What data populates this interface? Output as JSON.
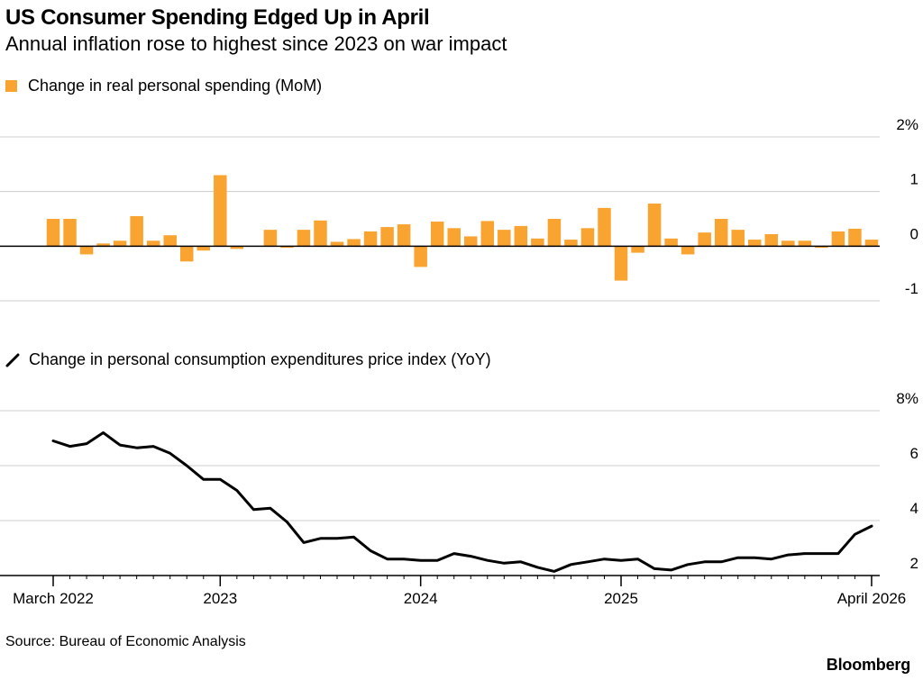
{
  "header": {
    "title": "US Consumer Spending Edged Up in April",
    "subtitle": "Annual inflation rose to highest since 2023 on war impact"
  },
  "legend": {
    "spending": "Change in real personal spending (MoM)",
    "pce": "Change in personal consumption expenditures price index (YoY)"
  },
  "footer": {
    "source": "Source: Bureau of Economic Analysis",
    "brand": "Bloomberg"
  },
  "colors": {
    "bar": "#f9a431",
    "line": "#000000",
    "grid": "#cccccc",
    "zero": "#000000"
  },
  "chart_data": [
    {
      "type": "bar",
      "name": "Change in real personal spending (MoM)",
      "x_start": "2022-03",
      "x_end": "2026-04",
      "ylim": [
        -1,
        2
      ],
      "yticks": [
        -1,
        0,
        1,
        2
      ],
      "ytick_labels": [
        "-1",
        "0",
        "1",
        "2%"
      ],
      "grid": true,
      "values": [
        0.5,
        0.5,
        -0.15,
        0.05,
        0.1,
        0.55,
        0.1,
        0.2,
        -0.28,
        -0.08,
        1.3,
        -0.05,
        0.0,
        0.3,
        -0.03,
        0.3,
        0.47,
        0.08,
        0.13,
        0.27,
        0.35,
        0.4,
        -0.38,
        0.45,
        0.33,
        0.18,
        0.46,
        0.3,
        0.37,
        0.14,
        0.5,
        0.12,
        0.33,
        0.7,
        -0.63,
        -0.12,
        0.78,
        0.14,
        -0.15,
        0.25,
        0.5,
        0.3,
        0.12,
        0.22,
        0.1,
        0.1,
        -0.03,
        0.27,
        0.32,
        0.12
      ]
    },
    {
      "type": "line",
      "name": "Change in personal consumption expenditures price index (YoY)",
      "x_start": "2022-03",
      "x_end": "2026-04",
      "ylim": [
        2,
        8
      ],
      "yticks": [
        2,
        4,
        6,
        8
      ],
      "ytick_labels": [
        "2",
        "4",
        "6",
        "8%"
      ],
      "grid": true,
      "values": [
        6.9,
        6.7,
        6.8,
        7.2,
        6.75,
        6.65,
        6.7,
        6.45,
        6.0,
        5.5,
        5.5,
        5.1,
        4.4,
        4.45,
        3.95,
        3.2,
        3.35,
        3.35,
        3.4,
        2.9,
        2.6,
        2.6,
        2.55,
        2.55,
        2.8,
        2.7,
        2.55,
        2.45,
        2.5,
        2.3,
        2.15,
        2.4,
        2.5,
        2.6,
        2.55,
        2.6,
        2.25,
        2.2,
        2.4,
        2.5,
        2.5,
        2.65,
        2.65,
        2.6,
        2.75,
        2.8,
        2.8,
        2.8,
        3.5,
        3.8
      ]
    }
  ],
  "x_axis": {
    "ticks": [
      {
        "index": 0,
        "label": "March 2022"
      },
      {
        "index": 10,
        "label": "2023"
      },
      {
        "index": 22,
        "label": "2024"
      },
      {
        "index": 34,
        "label": "2025"
      },
      {
        "index": 49,
        "label": "April 2026"
      }
    ]
  }
}
